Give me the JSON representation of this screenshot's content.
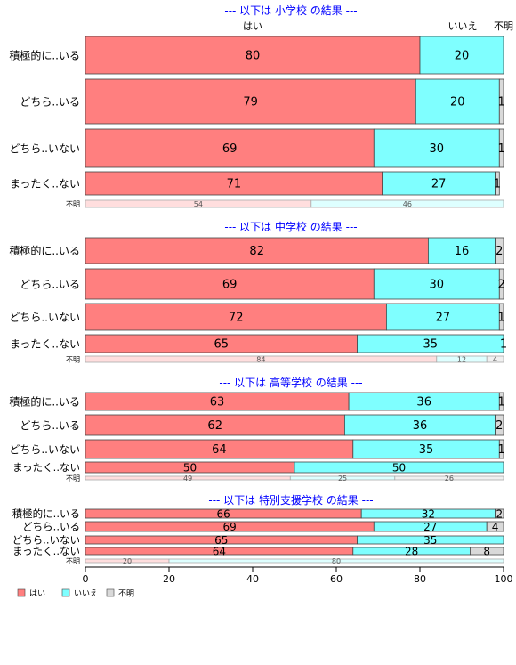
{
  "colors": {
    "yes": "#ff7f7f",
    "no": "#7fffff",
    "unknown": "#d9d9d9",
    "edge": "#444444",
    "title": "#0000ff"
  },
  "column_headers": [
    "はい",
    "いいえ",
    "不明"
  ],
  "legend": [
    "はい",
    "いいえ",
    "不明"
  ],
  "chart_data": {
    "type": "bar",
    "orientation": "horizontal",
    "stacked": true,
    "series_names": [
      "はい",
      "いいえ",
      "不明"
    ],
    "xlim": [
      0,
      100
    ],
    "xticks": [
      0,
      20,
      40,
      60,
      80,
      100
    ],
    "groups": [
      {
        "title": "--- 以下は 小学校 の結果 ---",
        "rows": [
          {
            "label": "積極的に..いる",
            "values": [
              80,
              20,
              0
            ],
            "labels": [
              "80",
              "20",
              ""
            ]
          },
          {
            "label": "どちら..いる",
            "values": [
              79,
              20,
              1
            ],
            "labels": [
              "79",
              "20",
              "1"
            ]
          },
          {
            "label": "どちら..いない",
            "values": [
              69,
              30,
              1
            ],
            "labels": [
              "69",
              "30",
              "1"
            ]
          },
          {
            "label": "まったく..ない",
            "values": [
              71,
              27,
              1
            ],
            "labels": [
              "71",
              "27",
              "1"
            ]
          },
          {
            "label": "不明",
            "values": [
              54,
              46,
              0
            ],
            "labels": [
              "54",
              "46",
              ""
            ],
            "small": true
          }
        ]
      },
      {
        "title": "--- 以下は 中学校 の結果 ---",
        "rows": [
          {
            "label": "積極的に..いる",
            "values": [
              82,
              16,
              2
            ],
            "labels": [
              "82",
              "16",
              "2"
            ]
          },
          {
            "label": "どちら..いる",
            "values": [
              69,
              30,
              2
            ],
            "labels": [
              "69",
              "30",
              "2"
            ]
          },
          {
            "label": "どちら..いない",
            "values": [
              72,
              27,
              1
            ],
            "labels": [
              "72",
              "27",
              "1"
            ]
          },
          {
            "label": "まったく..ない",
            "values": [
              65,
              35,
              1
            ],
            "labels": [
              "65",
              "35",
              "1"
            ]
          },
          {
            "label": "不明",
            "values": [
              84,
              12,
              4
            ],
            "labels": [
              "84",
              "12",
              "4"
            ],
            "small": true
          }
        ]
      },
      {
        "title": "--- 以下は 高等学校 の結果 ---",
        "rows": [
          {
            "label": "積極的に..いる",
            "values": [
              63,
              36,
              1
            ],
            "labels": [
              "63",
              "36",
              "1"
            ]
          },
          {
            "label": "どちら..いる",
            "values": [
              62,
              36,
              2
            ],
            "labels": [
              "62",
              "36",
              "2"
            ]
          },
          {
            "label": "どちら..いない",
            "values": [
              64,
              35,
              1
            ],
            "labels": [
              "64",
              "35",
              "1"
            ]
          },
          {
            "label": "まったく..ない",
            "values": [
              50,
              50,
              0
            ],
            "labels": [
              "50",
              "50",
              ""
            ]
          },
          {
            "label": "不明",
            "values": [
              49,
              25,
              26
            ],
            "labels": [
              "49",
              "25",
              "26"
            ],
            "small": true
          }
        ]
      },
      {
        "title": "--- 以下は 特別支援学校 の結果 ---",
        "rows": [
          {
            "label": "積極的に..いる",
            "values": [
              66,
              32,
              2
            ],
            "labels": [
              "66",
              "32",
              "2"
            ]
          },
          {
            "label": "どちら..いる",
            "values": [
              69,
              27,
              4
            ],
            "labels": [
              "69",
              "27",
              "4"
            ]
          },
          {
            "label": "どちら..いない",
            "values": [
              65,
              35,
              0
            ],
            "labels": [
              "65",
              "35",
              ""
            ]
          },
          {
            "label": "まったく..ない",
            "values": [
              64,
              28,
              8
            ],
            "labels": [
              "64",
              "28",
              "8"
            ]
          },
          {
            "label": "不明",
            "values": [
              20,
              80,
              0
            ],
            "labels": [
              "20",
              "80",
              ""
            ],
            "small": true
          }
        ]
      }
    ]
  }
}
